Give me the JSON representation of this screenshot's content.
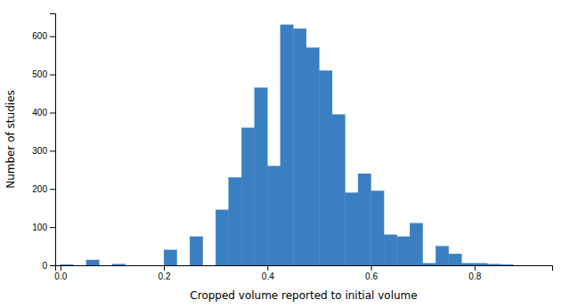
{
  "chart_data": {
    "type": "histogram",
    "xlabel": "Cropped volume reported to initial volume",
    "ylabel": "Number of studies",
    "bins": [
      0,
      0.025,
      0.05,
      0.075,
      0.1,
      0.125,
      0.15,
      0.175,
      0.2,
      0.225,
      0.25,
      0.275,
      0.3,
      0.325,
      0.35,
      0.375,
      0.4,
      0.425,
      0.45,
      0.475,
      0.5,
      0.525,
      0.55,
      0.575,
      0.6,
      0.625,
      0.65,
      0.675,
      0.7,
      0.725,
      0.75,
      0.775,
      0.8,
      0.825,
      0.85,
      0.875,
      0.9,
      0.925,
      0.95
    ],
    "values": [
      2,
      0,
      14,
      0,
      3,
      0,
      0,
      0,
      40,
      0,
      75,
      0,
      145,
      230,
      360,
      465,
      260,
      630,
      620,
      570,
      510,
      395,
      190,
      240,
      195,
      80,
      75,
      110,
      5,
      50,
      30,
      5,
      5,
      3,
      2,
      0,
      0,
      0
    ],
    "color": "#3a7fc1",
    "xlim": [
      -0.01,
      0.95
    ],
    "ylim": [
      0,
      660
    ],
    "xticks": [
      {
        "value": 0,
        "label": "0.0"
      },
      0.2,
      0.4,
      0.6,
      0.8
    ],
    "yticks": [
      0,
      100,
      200,
      300,
      400,
      500,
      600
    ],
    "grid": false
  }
}
